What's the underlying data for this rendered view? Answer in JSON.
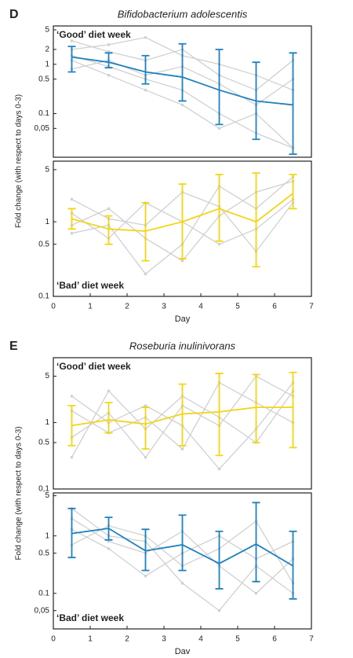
{
  "chart_data": [
    {
      "type": "line",
      "panel_label": "D",
      "title": "Bifidobacterium adolescentis",
      "ylabel": "Fold change (with respect to days 0-3)",
      "annotation": "‘Good’ diet week",
      "annotation_position": "upper left",
      "log_scale": true,
      "x": [
        0.5,
        1.5,
        2.5,
        3.5,
        4.5,
        5.5,
        6.5
      ],
      "xlim": [
        0,
        7
      ],
      "ylim": [
        0.013,
        6
      ],
      "yticks": [
        {
          "value": 0.05,
          "label": "0,05"
        },
        0.1,
        0.5,
        1,
        2,
        5
      ],
      "series": [
        {
          "color": "#d0d0d0",
          "values": [
            1.5,
            0.9,
            0.5,
            0.3,
            0.1,
            0.04,
            0.02
          ]
        },
        {
          "color": "#d0d0d0",
          "values": [
            2.0,
            2.5,
            3.5,
            1.5,
            1.0,
            0.6,
            0.3
          ]
        },
        {
          "color": "#d0d0d0",
          "values": [
            0.8,
            1.2,
            0.6,
            0.9,
            0.4,
            0.15,
            0.5
          ]
        },
        {
          "color": "#d0d0d0",
          "values": [
            1.2,
            0.6,
            0.3,
            0.15,
            0.05,
            0.1,
            0.02
          ]
        },
        {
          "color": "#d0d0d0",
          "values": [
            3,
            1.8,
            1.2,
            2,
            0.6,
            0.3,
            1.2
          ]
        },
        {
          "color": "#1f82c0",
          "values": [
            1.4,
            1.1,
            0.7,
            0.55,
            0.3,
            0.18,
            0.15
          ],
          "error_low": [
            0.7,
            0.85,
            0.4,
            0.18,
            0.06,
            0.03,
            0.015
          ],
          "error_high": [
            2.3,
            1.7,
            1.5,
            2.6,
            2.0,
            1.1,
            1.7
          ]
        }
      ]
    },
    {
      "type": "line",
      "annotation": "‘Bad’ diet week",
      "annotation_position": "lower left",
      "log_scale": true,
      "x": [
        0.5,
        1.5,
        2.5,
        3.5,
        4.5,
        5.5,
        6.5
      ],
      "xlim": [
        0,
        7
      ],
      "xticks": [
        0,
        1,
        2,
        3,
        4,
        5,
        6,
        7
      ],
      "xlabel": "Day",
      "ylim": [
        0.1,
        6.5
      ],
      "yticks": [
        0.1,
        0.5,
        1,
        5
      ],
      "series": [
        {
          "color": "#d0d0d0",
          "values": [
            0.9,
            1.5,
            0.6,
            0.3,
            1.2,
            2.5,
            3.5
          ]
        },
        {
          "color": "#d0d0d0",
          "values": [
            1.3,
            0.6,
            1.8,
            1.0,
            0.5,
            0.8,
            2
          ]
        },
        {
          "color": "#d0d0d0",
          "values": [
            0.7,
            0.9,
            0.2,
            0.5,
            3,
            1.5,
            4
          ]
        },
        {
          "color": "#d0d0d0",
          "values": [
            2,
            1.1,
            0.9,
            2.5,
            1.6,
            0.4,
            1.8
          ]
        },
        {
          "color": "#f2d616",
          "values": [
            1.1,
            0.8,
            0.75,
            1.0,
            1.5,
            1.0,
            2.4
          ],
          "error_low": [
            0.8,
            0.5,
            0.3,
            0.32,
            0.55,
            0.25,
            1.5
          ],
          "error_high": [
            1.5,
            1.2,
            1.8,
            3.2,
            4.3,
            4.5,
            4.3
          ]
        }
      ]
    },
    {
      "type": "line",
      "panel_label": "E",
      "title": "Roseburia inulinivorans",
      "ylabel": "Fold change (with respect to days 0-3)",
      "annotation": "‘Good’ diet week",
      "annotation_position": "upper left",
      "log_scale": true,
      "x": [
        0.5,
        1.5,
        2.5,
        3.5,
        4.5,
        5.5,
        6.5
      ],
      "xlim": [
        0,
        7
      ],
      "ylim": [
        0.1,
        9.5
      ],
      "yticks": [
        {
          "value": 0.1,
          "label": "0,1"
        },
        0.5,
        1,
        5
      ],
      "series": [
        {
          "color": "#d0d0d0",
          "values": [
            0.3,
            3,
            0.8,
            2.5,
            1.2,
            0.5,
            3
          ]
        },
        {
          "color": "#d0d0d0",
          "values": [
            1.5,
            0.7,
            1.2,
            0.4,
            4,
            2,
            1
          ]
        },
        {
          "color": "#d0d0d0",
          "values": [
            0.6,
            1.4,
            0.3,
            1.8,
            0.9,
            5,
            2.5
          ]
        },
        {
          "color": "#d0d0d0",
          "values": [
            2.5,
            1.0,
            1.8,
            0.9,
            0.2,
            0.8,
            4
          ]
        },
        {
          "color": "#f2d616",
          "values": [
            0.9,
            1.1,
            0.95,
            1.35,
            1.45,
            1.7,
            1.7
          ],
          "error_low": [
            0.45,
            0.7,
            0.4,
            0.45,
            0.32,
            0.5,
            0.42
          ],
          "error_high": [
            1.8,
            2.0,
            1.7,
            3.8,
            5.5,
            5.3,
            5.7
          ]
        }
      ]
    },
    {
      "type": "line",
      "annotation": "‘Bad’ diet week",
      "annotation_position": "lower left",
      "log_scale": true,
      "x": [
        0.5,
        1.5,
        2.5,
        3.5,
        4.5,
        5.5,
        6.5
      ],
      "xlim": [
        0,
        7
      ],
      "xticks": [
        0,
        1,
        2,
        3,
        4,
        5,
        6,
        7
      ],
      "xlabel": "Day",
      "ylim": [
        0.024,
        5.6
      ],
      "yticks": [
        {
          "value": 0.05,
          "label": "0,05"
        },
        0.1,
        0.5,
        1,
        5
      ],
      "series": [
        {
          "color": "#d0d0d0",
          "values": [
            2,
            0.8,
            0.5,
            1.2,
            0.3,
            0.1,
            0.4
          ]
        },
        {
          "color": "#d0d0d0",
          "values": [
            0.7,
            1.5,
            1.0,
            0.3,
            0.6,
            1.8,
            0.15
          ]
        },
        {
          "color": "#d0d0d0",
          "values": [
            1.3,
            0.6,
            0.2,
            0.5,
            1.0,
            0.4,
            0.8
          ]
        },
        {
          "color": "#d0d0d0",
          "values": [
            3,
            1.0,
            0.8,
            0.15,
            0.05,
            0.3,
            0.1
          ]
        },
        {
          "color": "#1f82c0",
          "values": [
            1.1,
            1.35,
            0.55,
            0.7,
            0.33,
            0.72,
            0.3
          ],
          "error_low": [
            0.42,
            0.85,
            0.25,
            0.25,
            0.12,
            0.16,
            0.08
          ],
          "error_high": [
            3.0,
            2.1,
            1.3,
            2.3,
            1.2,
            3.8,
            1.2
          ]
        }
      ]
    }
  ]
}
